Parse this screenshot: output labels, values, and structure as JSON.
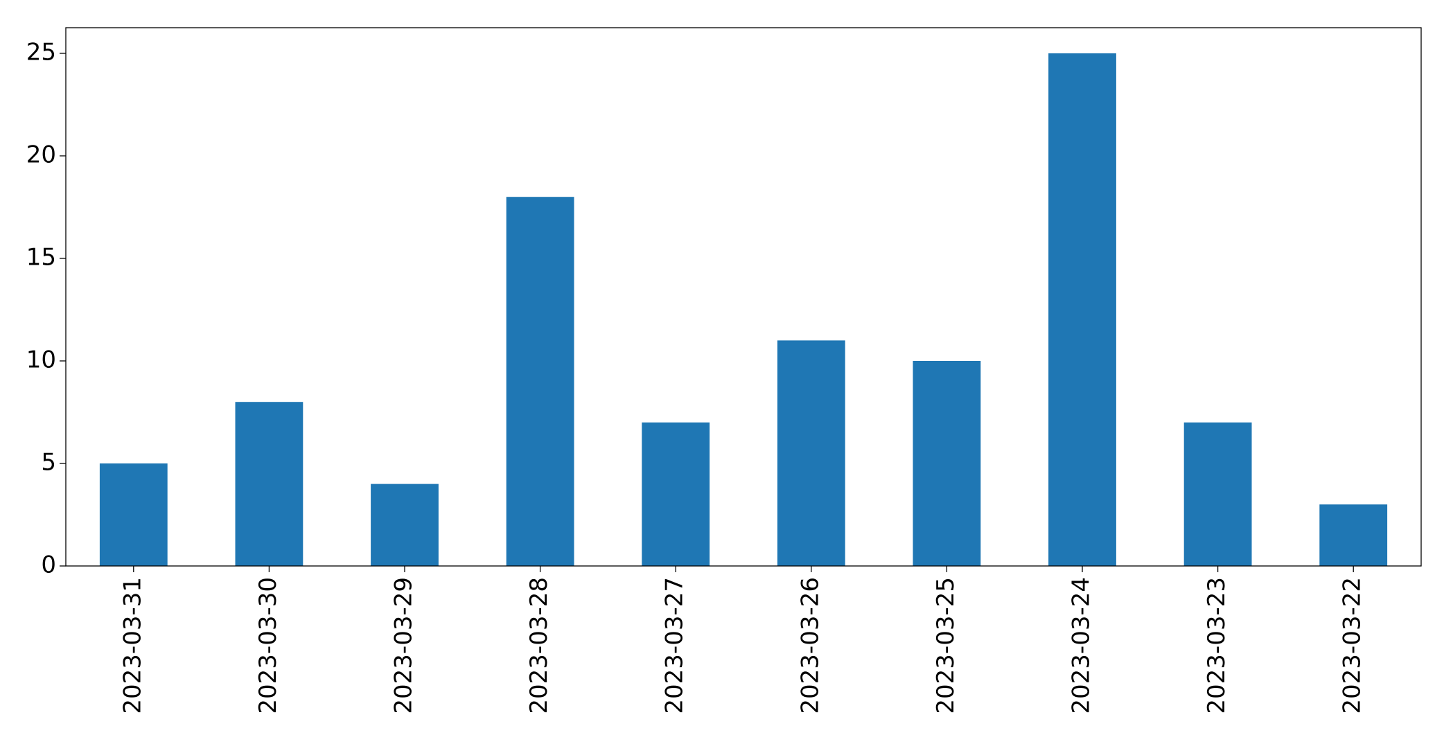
{
  "chart_data": {
    "type": "bar",
    "categories": [
      "2023-03-31",
      "2023-03-30",
      "2023-03-29",
      "2023-03-28",
      "2023-03-27",
      "2023-03-26",
      "2023-03-25",
      "2023-03-24",
      "2023-03-23",
      "2023-03-22"
    ],
    "values": [
      5,
      8,
      4,
      18,
      7,
      11,
      10,
      25,
      7,
      3
    ],
    "color": "#1f77b4",
    "ylim": [
      0,
      26.25
    ],
    "yticks": [
      0,
      5,
      10,
      15,
      20,
      25
    ],
    "grid": false
  }
}
